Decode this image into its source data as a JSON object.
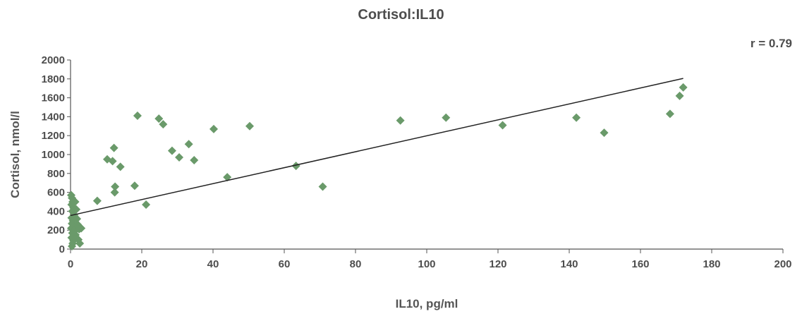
{
  "chart_data": {
    "type": "scatter",
    "title": "Cortisol:IL10",
    "annotation": "r  = 0.79",
    "xlabel": "IL10, pg/ml",
    "ylabel": "Cortisol, nmol/l",
    "xlim": [
      0,
      200
    ],
    "ylim": [
      0,
      2000
    ],
    "xticks": [
      0,
      20,
      40,
      60,
      80,
      100,
      120,
      140,
      160,
      180,
      200
    ],
    "yticks": [
      0,
      200,
      400,
      600,
      800,
      1000,
      1200,
      1400,
      1600,
      1800,
      2000
    ],
    "grid": false,
    "marker_color": "#6a9a6a",
    "trendline_color": "#222222",
    "trendline": {
      "x": [
        0,
        172
      ],
      "y": [
        355,
        1805
      ]
    },
    "points": [
      {
        "x": 0.2,
        "y": 570
      },
      {
        "x": 0.4,
        "y": 540
      },
      {
        "x": 0.6,
        "y": 500
      },
      {
        "x": 0.3,
        "y": 470
      },
      {
        "x": 0.8,
        "y": 440
      },
      {
        "x": 0.5,
        "y": 400
      },
      {
        "x": 1.0,
        "y": 360
      },
      {
        "x": 0.3,
        "y": 330
      },
      {
        "x": 0.7,
        "y": 300
      },
      {
        "x": 0.4,
        "y": 270
      },
      {
        "x": 1.2,
        "y": 250
      },
      {
        "x": 0.2,
        "y": 220
      },
      {
        "x": 0.9,
        "y": 200
      },
      {
        "x": 0.5,
        "y": 170
      },
      {
        "x": 1.4,
        "y": 150
      },
      {
        "x": 0.3,
        "y": 120
      },
      {
        "x": 0.8,
        "y": 90
      },
      {
        "x": 0.6,
        "y": 60
      },
      {
        "x": 0.4,
        "y": 30
      },
      {
        "x": 1.6,
        "y": 420
      },
      {
        "x": 1.8,
        "y": 320
      },
      {
        "x": 2.0,
        "y": 260
      },
      {
        "x": 2.4,
        "y": 210
      },
      {
        "x": 2.2,
        "y": 100
      },
      {
        "x": 2.6,
        "y": 60
      },
      {
        "x": 1.3,
        "y": 500
      },
      {
        "x": 3.0,
        "y": 220
      },
      {
        "x": 1.1,
        "y": 190
      },
      {
        "x": 7.5,
        "y": 510
      },
      {
        "x": 10.3,
        "y": 950
      },
      {
        "x": 11.8,
        "y": 930
      },
      {
        "x": 12.2,
        "y": 1070
      },
      {
        "x": 12.5,
        "y": 660
      },
      {
        "x": 12.4,
        "y": 600
      },
      {
        "x": 14.0,
        "y": 870
      },
      {
        "x": 18.0,
        "y": 670
      },
      {
        "x": 18.8,
        "y": 1410
      },
      {
        "x": 21.2,
        "y": 470
      },
      {
        "x": 24.8,
        "y": 1380
      },
      {
        "x": 26.0,
        "y": 1320
      },
      {
        "x": 28.5,
        "y": 1040
      },
      {
        "x": 30.5,
        "y": 970
      },
      {
        "x": 33.2,
        "y": 1110
      },
      {
        "x": 34.7,
        "y": 940
      },
      {
        "x": 40.2,
        "y": 1270
      },
      {
        "x": 44.0,
        "y": 760
      },
      {
        "x": 50.3,
        "y": 1300
      },
      {
        "x": 63.3,
        "y": 880
      },
      {
        "x": 70.8,
        "y": 660
      },
      {
        "x": 92.6,
        "y": 1360
      },
      {
        "x": 105.4,
        "y": 1390
      },
      {
        "x": 121.3,
        "y": 1310
      },
      {
        "x": 142.0,
        "y": 1390
      },
      {
        "x": 149.8,
        "y": 1230
      },
      {
        "x": 168.3,
        "y": 1430
      },
      {
        "x": 171.0,
        "y": 1620
      },
      {
        "x": 172.0,
        "y": 1710
      }
    ]
  }
}
